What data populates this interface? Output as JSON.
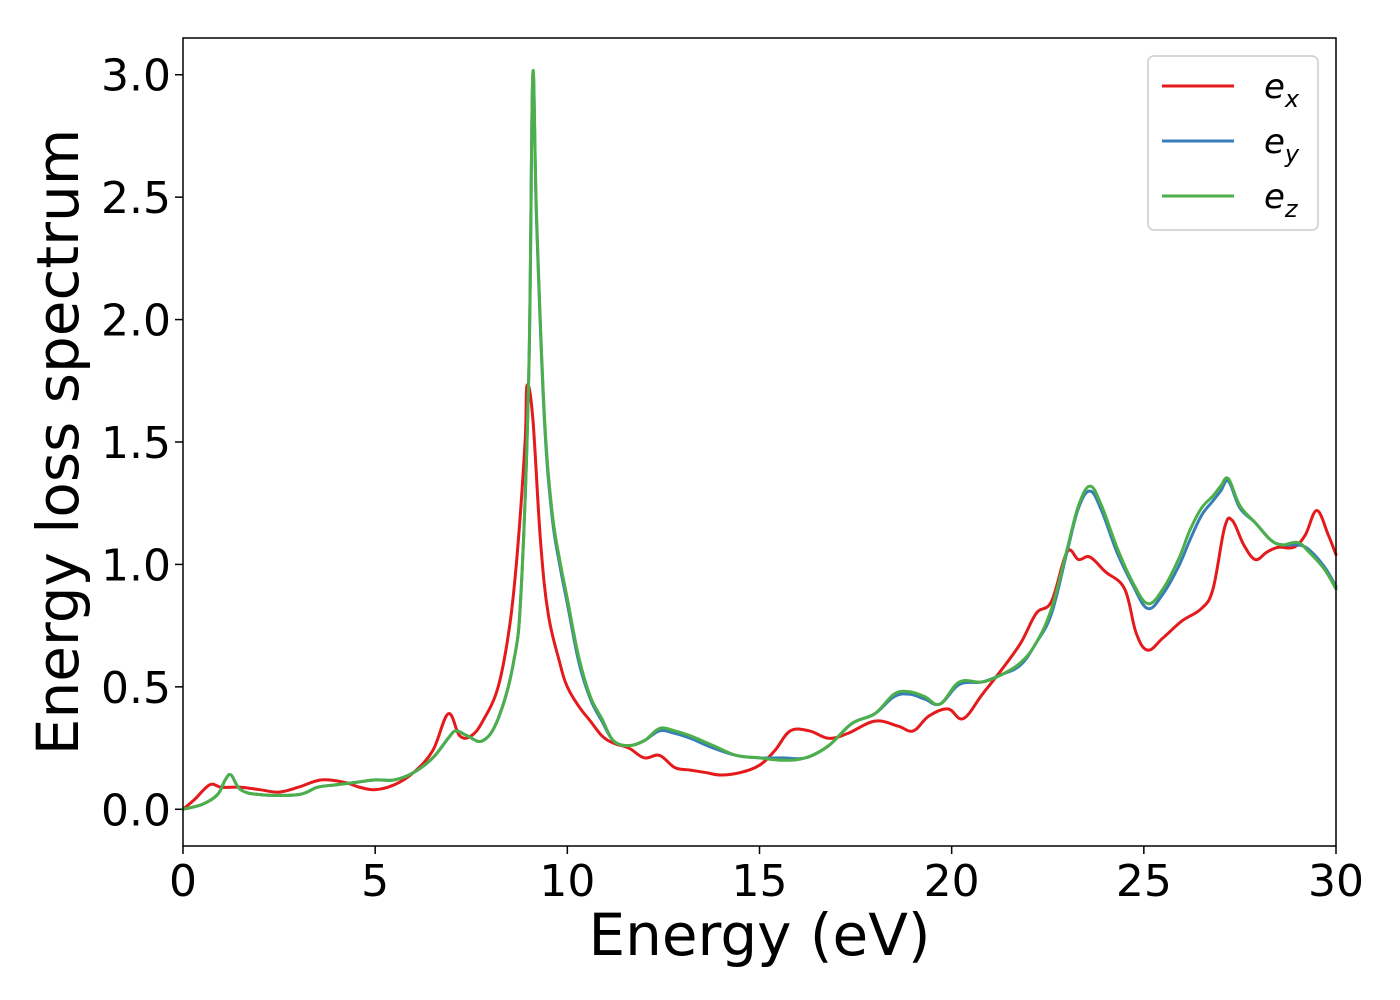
{
  "chart_data": {
    "type": "line",
    "title": "",
    "xlabel": "Energy (eV)",
    "ylabel": "Energy loss spectrum",
    "xlim": [
      0,
      30
    ],
    "ylim": [
      -0.15,
      3.15
    ],
    "xticks": [
      0,
      5,
      10,
      15,
      20,
      25,
      30
    ],
    "xtick_labels": [
      "0",
      "5",
      "10",
      "15",
      "20",
      "25",
      "30"
    ],
    "yticks": [
      0.0,
      0.5,
      1.0,
      1.5,
      2.0,
      2.5,
      3.0
    ],
    "ytick_labels": [
      "0.0",
      "0.5",
      "1.0",
      "1.5",
      "2.0",
      "2.5",
      "3.0"
    ],
    "grid": false,
    "legend_position": "top-right",
    "series": [
      {
        "name": "e_x",
        "legend_base": "e",
        "legend_sub": "x",
        "color": "#e41a1c",
        "points": [
          [
            0,
            0.0
          ],
          [
            0.3,
            0.04
          ],
          [
            0.7,
            0.1
          ],
          [
            1.0,
            0.09
          ],
          [
            1.5,
            0.09
          ],
          [
            2.0,
            0.08
          ],
          [
            2.5,
            0.07
          ],
          [
            3.0,
            0.09
          ],
          [
            3.6,
            0.12
          ],
          [
            4.2,
            0.11
          ],
          [
            4.6,
            0.09
          ],
          [
            5.0,
            0.08
          ],
          [
            5.5,
            0.1
          ],
          [
            6.0,
            0.15
          ],
          [
            6.5,
            0.24
          ],
          [
            6.9,
            0.39
          ],
          [
            7.2,
            0.3
          ],
          [
            7.5,
            0.3
          ],
          [
            7.8,
            0.36
          ],
          [
            8.2,
            0.5
          ],
          [
            8.5,
            0.75
          ],
          [
            8.7,
            1.05
          ],
          [
            8.9,
            1.5
          ],
          [
            8.95,
            1.73
          ],
          [
            9.1,
            1.6
          ],
          [
            9.3,
            1.1
          ],
          [
            9.5,
            0.8
          ],
          [
            9.8,
            0.6
          ],
          [
            10.0,
            0.5
          ],
          [
            10.3,
            0.42
          ],
          [
            10.6,
            0.36
          ],
          [
            10.9,
            0.3
          ],
          [
            11.2,
            0.27
          ],
          [
            11.6,
            0.25
          ],
          [
            12.0,
            0.21
          ],
          [
            12.4,
            0.22
          ],
          [
            12.8,
            0.17
          ],
          [
            13.2,
            0.16
          ],
          [
            13.6,
            0.15
          ],
          [
            14.0,
            0.14
          ],
          [
            14.5,
            0.15
          ],
          [
            15.0,
            0.18
          ],
          [
            15.4,
            0.24
          ],
          [
            15.8,
            0.32
          ],
          [
            16.3,
            0.32
          ],
          [
            16.8,
            0.29
          ],
          [
            17.3,
            0.31
          ],
          [
            18.0,
            0.36
          ],
          [
            18.6,
            0.34
          ],
          [
            19.0,
            0.32
          ],
          [
            19.4,
            0.38
          ],
          [
            19.9,
            0.41
          ],
          [
            20.3,
            0.37
          ],
          [
            20.8,
            0.47
          ],
          [
            21.3,
            0.57
          ],
          [
            21.8,
            0.68
          ],
          [
            22.2,
            0.8
          ],
          [
            22.6,
            0.85
          ],
          [
            23.0,
            1.05
          ],
          [
            23.3,
            1.02
          ],
          [
            23.6,
            1.03
          ],
          [
            24.0,
            0.97
          ],
          [
            24.5,
            0.9
          ],
          [
            24.8,
            0.72
          ],
          [
            25.1,
            0.65
          ],
          [
            25.5,
            0.7
          ],
          [
            26.0,
            0.77
          ],
          [
            26.5,
            0.82
          ],
          [
            26.8,
            0.9
          ],
          [
            27.1,
            1.15
          ],
          [
            27.3,
            1.18
          ],
          [
            27.6,
            1.08
          ],
          [
            27.9,
            1.02
          ],
          [
            28.2,
            1.05
          ],
          [
            28.5,
            1.07
          ],
          [
            28.9,
            1.07
          ],
          [
            29.2,
            1.12
          ],
          [
            29.5,
            1.22
          ],
          [
            29.8,
            1.12
          ],
          [
            30.0,
            1.04
          ]
        ]
      },
      {
        "name": "e_y",
        "legend_base": "e",
        "legend_sub": "y",
        "color": "#377eb8",
        "points": [
          [
            0,
            0.0
          ],
          [
            0.5,
            0.02
          ],
          [
            0.9,
            0.06
          ],
          [
            1.1,
            0.12
          ],
          [
            1.25,
            0.14
          ],
          [
            1.5,
            0.08
          ],
          [
            2.0,
            0.06
          ],
          [
            3.0,
            0.06
          ],
          [
            3.5,
            0.09
          ],
          [
            4.0,
            0.1
          ],
          [
            4.5,
            0.11
          ],
          [
            5.0,
            0.12
          ],
          [
            5.5,
            0.12
          ],
          [
            6.0,
            0.15
          ],
          [
            6.5,
            0.21
          ],
          [
            6.9,
            0.29
          ],
          [
            7.1,
            0.32
          ],
          [
            7.4,
            0.3
          ],
          [
            7.8,
            0.28
          ],
          [
            8.2,
            0.37
          ],
          [
            8.6,
            0.6
          ],
          [
            8.8,
            0.9
          ],
          [
            9.0,
            1.8
          ],
          [
            9.1,
            2.99
          ],
          [
            9.2,
            2.4
          ],
          [
            9.4,
            1.6
          ],
          [
            9.6,
            1.2
          ],
          [
            9.8,
            1.0
          ],
          [
            10.0,
            0.84
          ],
          [
            10.3,
            0.6
          ],
          [
            10.6,
            0.45
          ],
          [
            10.9,
            0.36
          ],
          [
            11.2,
            0.28
          ],
          [
            11.6,
            0.26
          ],
          [
            12.0,
            0.28
          ],
          [
            12.4,
            0.32
          ],
          [
            12.8,
            0.31
          ],
          [
            13.2,
            0.29
          ],
          [
            13.8,
            0.25
          ],
          [
            14.4,
            0.22
          ],
          [
            15.0,
            0.21
          ],
          [
            15.6,
            0.21
          ],
          [
            16.2,
            0.21
          ],
          [
            16.8,
            0.26
          ],
          [
            17.4,
            0.35
          ],
          [
            18.0,
            0.39
          ],
          [
            18.5,
            0.46
          ],
          [
            18.9,
            0.47
          ],
          [
            19.3,
            0.45
          ],
          [
            19.7,
            0.43
          ],
          [
            20.2,
            0.51
          ],
          [
            20.8,
            0.52
          ],
          [
            21.3,
            0.55
          ],
          [
            21.8,
            0.59
          ],
          [
            22.2,
            0.68
          ],
          [
            22.6,
            0.8
          ],
          [
            23.0,
            1.05
          ],
          [
            23.3,
            1.23
          ],
          [
            23.6,
            1.3
          ],
          [
            23.9,
            1.22
          ],
          [
            24.3,
            1.05
          ],
          [
            24.7,
            0.92
          ],
          [
            25.1,
            0.82
          ],
          [
            25.5,
            0.88
          ],
          [
            25.9,
            0.99
          ],
          [
            26.2,
            1.1
          ],
          [
            26.5,
            1.2
          ],
          [
            26.8,
            1.26
          ],
          [
            27.0,
            1.3
          ],
          [
            27.2,
            1.34
          ],
          [
            27.5,
            1.23
          ],
          [
            27.9,
            1.17
          ],
          [
            28.3,
            1.1
          ],
          [
            28.6,
            1.08
          ],
          [
            29.0,
            1.08
          ],
          [
            29.3,
            1.06
          ],
          [
            29.7,
            0.99
          ],
          [
            30.0,
            0.91
          ]
        ]
      },
      {
        "name": "e_z",
        "legend_base": "e",
        "legend_sub": "z",
        "color": "#4daf4a",
        "points": [
          [
            0,
            0.0
          ],
          [
            0.5,
            0.02
          ],
          [
            0.9,
            0.06
          ],
          [
            1.1,
            0.12
          ],
          [
            1.25,
            0.14
          ],
          [
            1.5,
            0.08
          ],
          [
            2.0,
            0.06
          ],
          [
            3.0,
            0.06
          ],
          [
            3.5,
            0.09
          ],
          [
            4.0,
            0.1
          ],
          [
            4.5,
            0.11
          ],
          [
            5.0,
            0.12
          ],
          [
            5.5,
            0.12
          ],
          [
            6.0,
            0.15
          ],
          [
            6.5,
            0.21
          ],
          [
            6.9,
            0.29
          ],
          [
            7.1,
            0.32
          ],
          [
            7.4,
            0.3
          ],
          [
            7.8,
            0.28
          ],
          [
            8.2,
            0.37
          ],
          [
            8.6,
            0.6
          ],
          [
            8.8,
            0.9
          ],
          [
            9.0,
            1.8
          ],
          [
            9.1,
            3.0
          ],
          [
            9.2,
            2.42
          ],
          [
            9.4,
            1.62
          ],
          [
            9.6,
            1.22
          ],
          [
            9.8,
            1.02
          ],
          [
            10.0,
            0.86
          ],
          [
            10.3,
            0.62
          ],
          [
            10.6,
            0.46
          ],
          [
            10.9,
            0.37
          ],
          [
            11.2,
            0.28
          ],
          [
            11.6,
            0.26
          ],
          [
            12.0,
            0.28
          ],
          [
            12.4,
            0.33
          ],
          [
            12.8,
            0.32
          ],
          [
            13.2,
            0.3
          ],
          [
            13.8,
            0.26
          ],
          [
            14.4,
            0.22
          ],
          [
            15.0,
            0.21
          ],
          [
            15.6,
            0.2
          ],
          [
            16.2,
            0.21
          ],
          [
            16.8,
            0.26
          ],
          [
            17.4,
            0.35
          ],
          [
            18.0,
            0.39
          ],
          [
            18.5,
            0.47
          ],
          [
            18.9,
            0.48
          ],
          [
            19.3,
            0.46
          ],
          [
            19.7,
            0.43
          ],
          [
            20.2,
            0.52
          ],
          [
            20.8,
            0.52
          ],
          [
            21.3,
            0.55
          ],
          [
            21.8,
            0.6
          ],
          [
            22.2,
            0.68
          ],
          [
            22.6,
            0.82
          ],
          [
            23.0,
            1.06
          ],
          [
            23.3,
            1.24
          ],
          [
            23.6,
            1.32
          ],
          [
            23.9,
            1.24
          ],
          [
            24.3,
            1.07
          ],
          [
            24.7,
            0.93
          ],
          [
            25.1,
            0.84
          ],
          [
            25.5,
            0.9
          ],
          [
            25.9,
            1.02
          ],
          [
            26.2,
            1.14
          ],
          [
            26.5,
            1.23
          ],
          [
            26.8,
            1.28
          ],
          [
            27.0,
            1.32
          ],
          [
            27.2,
            1.35
          ],
          [
            27.5,
            1.24
          ],
          [
            27.9,
            1.17
          ],
          [
            28.3,
            1.1
          ],
          [
            28.6,
            1.08
          ],
          [
            29.0,
            1.09
          ],
          [
            29.3,
            1.05
          ],
          [
            29.7,
            0.98
          ],
          [
            30.0,
            0.9
          ]
        ]
      }
    ]
  }
}
